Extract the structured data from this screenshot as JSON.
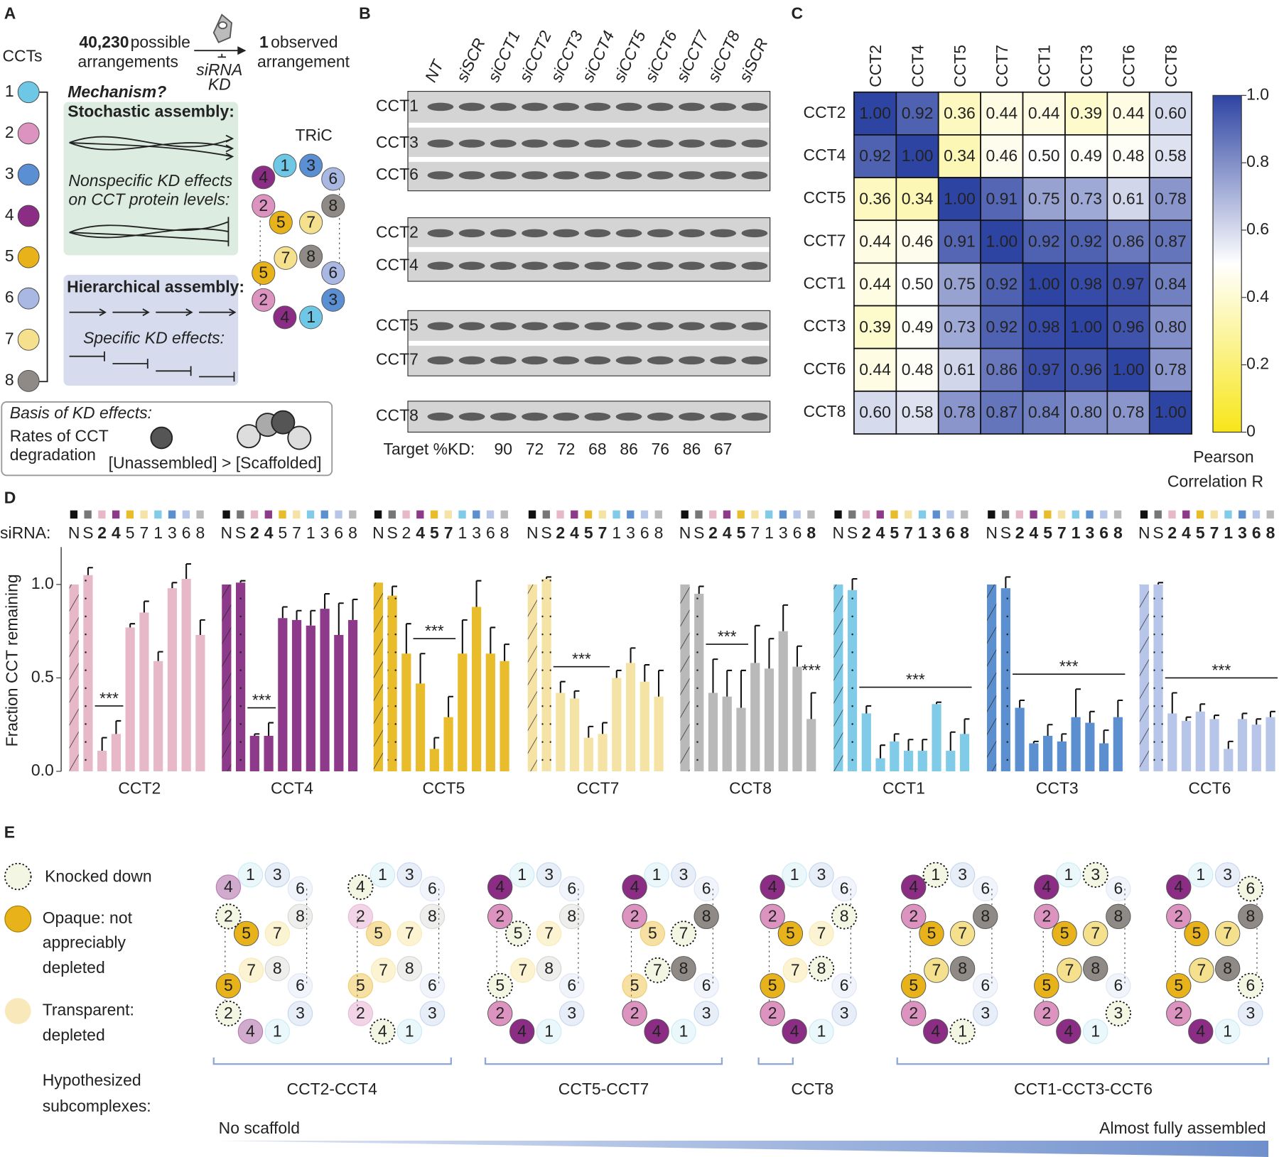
{
  "panel_labels": [
    "A",
    "B",
    "C",
    "D",
    "E"
  ],
  "panel_a": {
    "ccts_label": "CCTs",
    "subunits": [
      {
        "number": 1,
        "color": "#6fc7e6"
      },
      {
        "number": 2,
        "color": "#dc93bf"
      },
      {
        "number": 3,
        "color": "#5b8fd3"
      },
      {
        "number": 4,
        "color": "#8b2d84"
      },
      {
        "number": 5,
        "color": "#e8b21a"
      },
      {
        "number": 6,
        "color": "#a9b8e3"
      },
      {
        "number": 7,
        "color": "#f4e08d"
      },
      {
        "number": 8,
        "color": "#8f8a85"
      }
    ],
    "possible_count": "40,230",
    "possible_text": [
      "possible",
      "arrangements"
    ],
    "observed_count": "1",
    "observed_text": [
      "observed",
      "arrangement"
    ],
    "perturbation": [
      "siRNA",
      "KD"
    ],
    "mechanism": "Mechanism?",
    "stochastic": {
      "title": "Stochastic assembly:",
      "effects": [
        "Nonspecific KD effects",
        "on CCT protein levels:"
      ]
    },
    "hierarchical": {
      "title": "Hierarchical assembly:",
      "effects": [
        "Specific KD effects:"
      ]
    },
    "tric": "TRiC",
    "basis": {
      "title": "Basis of KD effects:",
      "rates": [
        "Rates of CCT",
        "degradation"
      ],
      "relation": "[Unassembled] > [Scaffolded]"
    }
  },
  "panel_b": {
    "lanes": [
      "NT",
      "siSCR",
      "siCCT1",
      "siCCT2",
      "siCCT3",
      "siCCT4",
      "siCCT5",
      "siCCT6",
      "siCCT7",
      "siCCT8",
      "siSCR"
    ],
    "rows": [
      "CCT1",
      "CCT3",
      "CCT6",
      "CCT2",
      "CCT4",
      "CCT5",
      "CCT7",
      "CCT8"
    ],
    "kd_label": "Target %KD:",
    "kd_values": [
      90,
      72,
      72,
      68,
      86,
      76,
      86,
      67
    ]
  },
  "chart_data": [
    {
      "type": "heatmap",
      "categories": [
        "CCT2",
        "CCT4",
        "CCT5",
        "CCT7",
        "CCT1",
        "CCT3",
        "CCT6",
        "CCT8"
      ],
      "values": [
        [
          1,
          0.92,
          0.36,
          0.44,
          0.44,
          0.39,
          0.44,
          0.6
        ],
        [
          0.92,
          1,
          0.34,
          0.46,
          0.5,
          0.49,
          0.48,
          0.58
        ],
        [
          0.36,
          0.34,
          1,
          0.91,
          0.75,
          0.73,
          0.61,
          0.78
        ],
        [
          0.44,
          0.46,
          0.91,
          1,
          0.92,
          0.92,
          0.86,
          0.87
        ],
        [
          0.44,
          0.5,
          0.75,
          0.92,
          1,
          0.98,
          0.97,
          0.84
        ],
        [
          0.39,
          0.49,
          0.73,
          0.92,
          0.98,
          1,
          0.96,
          0.8
        ],
        [
          0.44,
          0.48,
          0.61,
          0.86,
          0.97,
          0.96,
          1,
          0.78
        ],
        [
          0.6,
          0.58,
          0.78,
          0.87,
          0.84,
          0.8,
          0.78,
          1
        ]
      ],
      "value_labels": [
        [
          "1.00",
          "0.92",
          "0.36",
          "0.44",
          "0.44",
          "0.39",
          "0.44",
          "0.60"
        ],
        [
          "0.92",
          "1.00",
          "0.34",
          "0.46",
          "0.50",
          "0.49",
          "0.48",
          "0.58"
        ],
        [
          "0.36",
          "0.34",
          "1.00",
          "0.91",
          "0.75",
          "0.73",
          "0.61",
          "0.78"
        ],
        [
          "0.44",
          "0.46",
          "0.91",
          "1.00",
          "0.92",
          "0.92",
          "0.86",
          "0.87"
        ],
        [
          "0.44",
          "0.50",
          "0.75",
          "0.92",
          "1.00",
          "0.98",
          "0.97",
          "0.84"
        ],
        [
          "0.39",
          "0.49",
          "0.73",
          "0.92",
          "0.98",
          "1.00",
          "0.96",
          "0.80"
        ],
        [
          "0.44",
          "0.48",
          "0.61",
          "0.86",
          "0.97",
          "0.96",
          "1.00",
          "0.78"
        ],
        [
          "0.60",
          "0.58",
          "0.78",
          "0.87",
          "0.84",
          "0.80",
          "0.78",
          "1.00"
        ]
      ],
      "zlim": [
        0,
        1
      ],
      "zticks": [
        0,
        0.2,
        0.4,
        0.6,
        0.8,
        {
          "value": 1,
          "label": "1.0"
        }
      ],
      "colorbar_label": [
        "Pearson",
        "Correlation R"
      ],
      "colormap": [
        "#f7e619",
        "#ffffff",
        "#2e44a3"
      ]
    },
    {
      "type": "bar",
      "title": "CCT2",
      "color": "#e6b8c8",
      "ylabel": "Fraction CCT remaining",
      "siRNA_label": "siRNA:",
      "ylim": [
        0,
        1.2
      ],
      "yticks": [
        {
          "value": 0,
          "label": "0.0"
        },
        0.5,
        {
          "value": 1,
          "label": "1.0"
        }
      ],
      "categories": [
        "N",
        "S",
        "2",
        "4",
        "5",
        "7",
        "1",
        "3",
        "6",
        "8"
      ],
      "category_colors": [
        "#111111",
        "#777777",
        "#e6b8c8",
        "#8e3a8a",
        "#e8bc2a",
        "#f5e3a5",
        "#7fcbe8",
        "#5b8fcf",
        "#b7c6e8",
        "#b9b9b9"
      ],
      "values": [
        1,
        1.05,
        0.11,
        0.2,
        0.77,
        0.85,
        0.59,
        0.98,
        1.03,
        0.73
      ],
      "errors": [
        0,
        0.04,
        0.07,
        0.07,
        0.02,
        0.06,
        0.05,
        0.03,
        0.08,
        0.08
      ],
      "significance": [
        {
          "label": "***",
          "span": [
            2,
            3
          ]
        }
      ]
    },
    {
      "type": "bar",
      "title": "CCT4",
      "color": "#8e3a8a",
      "ylim": [
        0,
        1.2
      ],
      "categories": [
        "N",
        "S",
        "2",
        "4",
        "5",
        "7",
        "1",
        "3",
        "6",
        "8"
      ],
      "category_colors": [
        "#111111",
        "#777777",
        "#e6b8c8",
        "#8e3a8a",
        "#e8bc2a",
        "#f5e3a5",
        "#7fcbe8",
        "#5b8fcf",
        "#b7c6e8",
        "#b9b9b9"
      ],
      "values": [
        1,
        1.01,
        0.19,
        0.19,
        0.82,
        0.81,
        0.78,
        0.87,
        0.73,
        0.81
      ],
      "errors": [
        0,
        0.01,
        0.01,
        0.07,
        0.06,
        0.05,
        0.08,
        0.08,
        0.17,
        0.11
      ],
      "significance": [
        {
          "label": "***",
          "span": [
            2,
            3
          ]
        }
      ]
    },
    {
      "type": "bar",
      "title": "CCT5",
      "color": "#e8bc2a",
      "ylim": [
        0,
        1.2
      ],
      "categories": [
        "N",
        "S",
        "2",
        "4",
        "5",
        "7",
        "1",
        "3",
        "6",
        "8"
      ],
      "category_colors": [
        "#111111",
        "#777777",
        "#e6b8c8",
        "#8e3a8a",
        "#e8bc2a",
        "#f5e3a5",
        "#7fcbe8",
        "#5b8fcf",
        "#b7c6e8",
        "#b9b9b9"
      ],
      "values": [
        1.01,
        0.94,
        0.63,
        0.47,
        0.12,
        0.29,
        0.63,
        0.88,
        0.63,
        0.59
      ],
      "errors": [
        0,
        0.05,
        0.16,
        0.16,
        0.06,
        0.11,
        0.18,
        0.14,
        0.14,
        0.09
      ],
      "significance": [
        {
          "label": "***",
          "span": [
            3,
            5
          ]
        }
      ]
    },
    {
      "type": "bar",
      "title": "CCT7",
      "color": "#f5e3a5",
      "ylim": [
        0,
        1.2
      ],
      "categories": [
        "N",
        "S",
        "2",
        "4",
        "5",
        "7",
        "1",
        "3",
        "6",
        "8"
      ],
      "category_colors": [
        "#111111",
        "#777777",
        "#e6b8c8",
        "#8e3a8a",
        "#e8bc2a",
        "#f5e3a5",
        "#7fcbe8",
        "#5b8fcf",
        "#b7c6e8",
        "#b9b9b9"
      ],
      "values": [
        1,
        1.03,
        0.42,
        0.39,
        0.18,
        0.2,
        0.5,
        0.58,
        0.48,
        0.4
      ],
      "errors": [
        0,
        0.01,
        0.06,
        0.04,
        0.06,
        0.06,
        0.04,
        0.08,
        0.09,
        0.14
      ],
      "significance": [
        {
          "label": "***",
          "span": [
            2,
            5
          ]
        }
      ]
    },
    {
      "type": "bar",
      "title": "CCT8",
      "color": "#b9b9b9",
      "ylim": [
        0,
        1.2
      ],
      "categories": [
        "N",
        "S",
        "2",
        "4",
        "5",
        "7",
        "1",
        "3",
        "6",
        "8"
      ],
      "category_colors": [
        "#111111",
        "#777777",
        "#e6b8c8",
        "#8e3a8a",
        "#e8bc2a",
        "#f5e3a5",
        "#7fcbe8",
        "#5b8fcf",
        "#b7c6e8",
        "#b9b9b9"
      ],
      "values": [
        1,
        0.95,
        0.42,
        0.4,
        0.34,
        0.58,
        0.55,
        0.75,
        0.56,
        0.28
      ],
      "errors": [
        0,
        0.04,
        0.18,
        0.14,
        0.2,
        0.2,
        0.16,
        0.14,
        0.11,
        0.14
      ],
      "significance": [
        {
          "label": "***",
          "span": [
            2,
            4
          ]
        },
        {
          "label": "***",
          "span": [
            9,
            9
          ]
        }
      ]
    },
    {
      "type": "bar",
      "title": "CCT1",
      "color": "#7fcbe8",
      "ylim": [
        0,
        1.2
      ],
      "categories": [
        "N",
        "S",
        "2",
        "4",
        "5",
        "7",
        "1",
        "3",
        "6",
        "8"
      ],
      "category_colors": [
        "#111111",
        "#777777",
        "#e6b8c8",
        "#8e3a8a",
        "#e8bc2a",
        "#f5e3a5",
        "#7fcbe8",
        "#5b8fcf",
        "#b7c6e8",
        "#b9b9b9"
      ],
      "values": [
        1,
        0.97,
        0.31,
        0.07,
        0.16,
        0.11,
        0.11,
        0.36,
        0.11,
        0.2
      ],
      "errors": [
        0,
        0.06,
        0.04,
        0.07,
        0.04,
        0.06,
        0.06,
        0.01,
        0.1,
        0.08
      ],
      "significance": [
        {
          "label": "***",
          "span": [
            2,
            9
          ]
        }
      ]
    },
    {
      "type": "bar",
      "title": "CCT3",
      "color": "#5b8fcf",
      "ylim": [
        0,
        1.2
      ],
      "categories": [
        "N",
        "S",
        "2",
        "4",
        "5",
        "7",
        "1",
        "3",
        "6",
        "8"
      ],
      "category_colors": [
        "#111111",
        "#777777",
        "#e6b8c8",
        "#8e3a8a",
        "#e8bc2a",
        "#f5e3a5",
        "#7fcbe8",
        "#5b8fcf",
        "#b7c6e8",
        "#b9b9b9"
      ],
      "values": [
        1,
        0.98,
        0.34,
        0.15,
        0.19,
        0.16,
        0.29,
        0.26,
        0.15,
        0.29
      ],
      "errors": [
        0,
        0.06,
        0.04,
        0.01,
        0.06,
        0.04,
        0.15,
        0.06,
        0.07,
        0.09
      ],
      "significance": [
        {
          "label": "***",
          "span": [
            2,
            9
          ]
        }
      ]
    },
    {
      "type": "bar",
      "title": "CCT6",
      "color": "#b7c6e8",
      "ylim": [
        0,
        1.2
      ],
      "categories": [
        "N",
        "S",
        "2",
        "4",
        "5",
        "7",
        "1",
        "3",
        "6",
        "8"
      ],
      "category_colors": [
        "#111111",
        "#777777",
        "#e6b8c8",
        "#8e3a8a",
        "#e8bc2a",
        "#f5e3a5",
        "#7fcbe8",
        "#5b8fcf",
        "#b7c6e8",
        "#b9b9b9"
      ],
      "values": [
        1,
        1,
        0.31,
        0.27,
        0.32,
        0.28,
        0.12,
        0.28,
        0.25,
        0.29
      ],
      "errors": [
        0,
        0.01,
        0.11,
        0.02,
        0.04,
        0.02,
        0.04,
        0.03,
        0.03,
        0.03
      ],
      "significance": [
        {
          "label": "***",
          "span": [
            2,
            9
          ]
        }
      ]
    }
  ],
  "panel_e": {
    "legend": {
      "knocked": [
        "Knocked down"
      ],
      "opaque": [
        "Opaque: not",
        "appreciably",
        "depleted"
      ],
      "transparent": [
        "Transparent:",
        "depleted"
      ]
    },
    "hypothesized": [
      "Hypothesized",
      "subcomplexes:"
    ],
    "subcomplex_labels": [
      "CCT2-CCT4",
      "CCT5-CCT7",
      "CCT8",
      "CCT1-CCT3-CCT6"
    ],
    "gradient_labels": [
      "No scaffold",
      "Almost fully assembled"
    ]
  }
}
